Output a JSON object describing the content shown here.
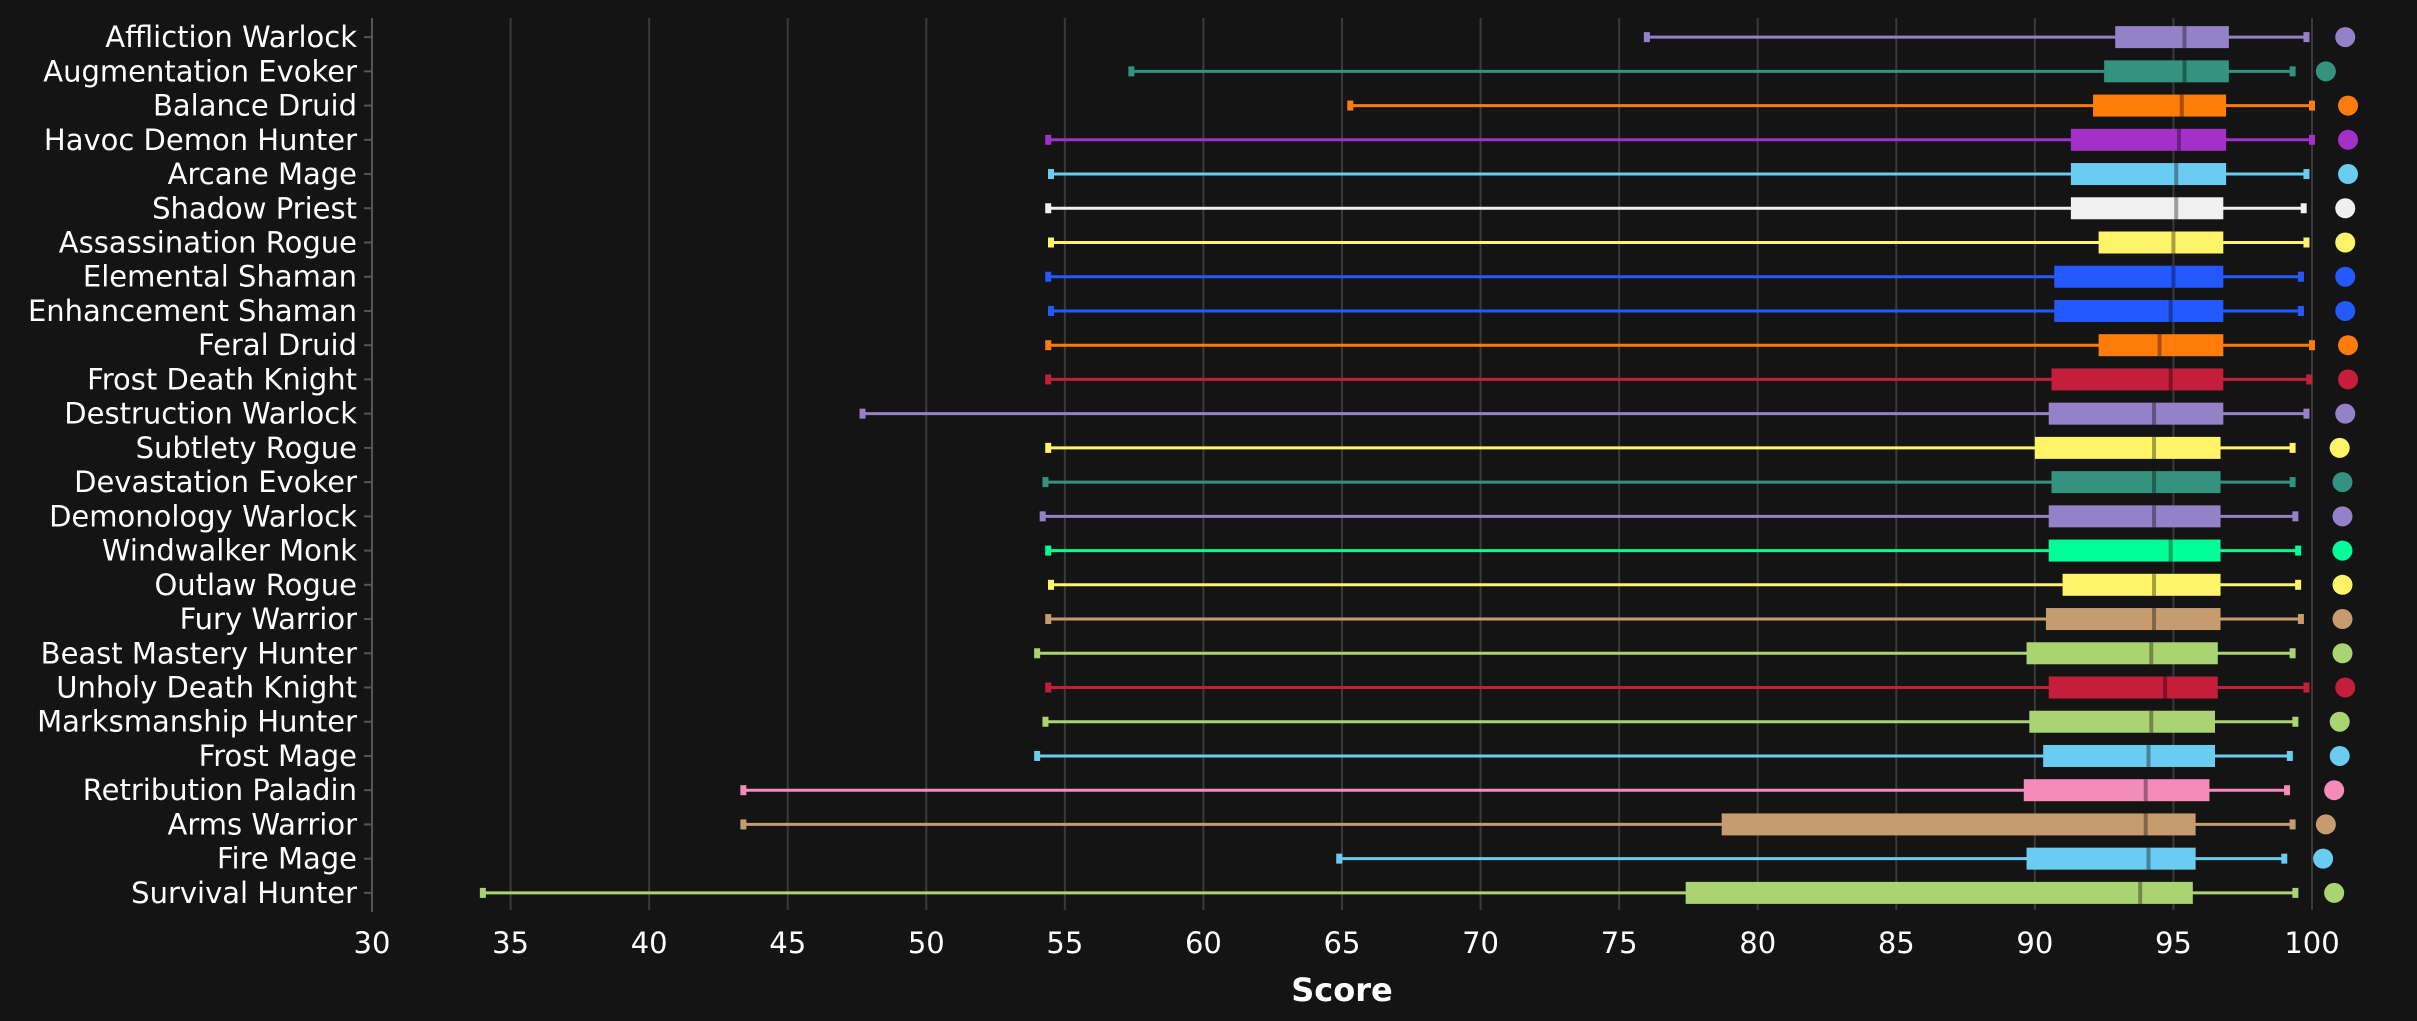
{
  "chart_data": {
    "type": "boxplot",
    "xlabel": "Score",
    "xlim": [
      30,
      100
    ],
    "xticks": [
      30,
      35,
      40,
      45,
      50,
      55,
      60,
      65,
      70,
      75,
      80,
      85,
      90,
      95,
      100
    ],
    "grid": true,
    "legend": "none",
    "series": [
      {
        "name": "Affliction Warlock",
        "color": "#9482C9",
        "min": 76.0,
        "q1": 92.9,
        "median": 95.4,
        "q3": 97.0,
        "max": 99.8,
        "dot": 101.2
      },
      {
        "name": "Augmentation Evoker",
        "color": "#33937F",
        "min": 57.4,
        "q1": 92.5,
        "median": 95.4,
        "q3": 97.0,
        "max": 99.3,
        "dot": 100.5
      },
      {
        "name": "Balance Druid",
        "color": "#FF7C0A",
        "min": 65.3,
        "q1": 92.1,
        "median": 95.3,
        "q3": 96.9,
        "max": 100.0,
        "dot": 101.3
      },
      {
        "name": "Havoc Demon Hunter",
        "color": "#A330C9",
        "min": 54.4,
        "q1": 91.3,
        "median": 95.2,
        "q3": 96.9,
        "max": 100.0,
        "dot": 101.3
      },
      {
        "name": "Arcane Mage",
        "color": "#69CCF0",
        "min": 54.5,
        "q1": 91.3,
        "median": 95.1,
        "q3": 96.9,
        "max": 99.8,
        "dot": 101.3
      },
      {
        "name": "Shadow Priest",
        "color": "#F0F0F0",
        "min": 54.4,
        "q1": 91.3,
        "median": 95.1,
        "q3": 96.8,
        "max": 99.7,
        "dot": 101.2
      },
      {
        "name": "Assassination Rogue",
        "color": "#FFF468",
        "min": 54.5,
        "q1": 92.3,
        "median": 95.0,
        "q3": 96.8,
        "max": 99.8,
        "dot": 101.2
      },
      {
        "name": "Elemental Shaman",
        "color": "#2459FF",
        "min": 54.4,
        "q1": 90.7,
        "median": 95.0,
        "q3": 96.8,
        "max": 99.6,
        "dot": 101.2
      },
      {
        "name": "Enhancement Shaman",
        "color": "#2459FF",
        "min": 54.5,
        "q1": 90.7,
        "median": 94.9,
        "q3": 96.8,
        "max": 99.6,
        "dot": 101.2
      },
      {
        "name": "Feral Druid",
        "color": "#FF7C0A",
        "min": 54.4,
        "q1": 92.3,
        "median": 94.5,
        "q3": 96.8,
        "max": 100.0,
        "dot": 101.3
      },
      {
        "name": "Frost Death Knight",
        "color": "#C41E3A",
        "min": 54.4,
        "q1": 90.6,
        "median": 94.9,
        "q3": 96.8,
        "max": 99.9,
        "dot": 101.3
      },
      {
        "name": "Destruction Warlock",
        "color": "#9482C9",
        "min": 47.7,
        "q1": 90.5,
        "median": 94.3,
        "q3": 96.8,
        "max": 99.8,
        "dot": 101.2
      },
      {
        "name": "Subtlety Rogue",
        "color": "#FFF468",
        "min": 54.4,
        "q1": 90.0,
        "median": 94.3,
        "q3": 96.7,
        "max": 99.3,
        "dot": 101.0
      },
      {
        "name": "Devastation Evoker",
        "color": "#33937F",
        "min": 54.3,
        "q1": 90.6,
        "median": 94.3,
        "q3": 96.7,
        "max": 99.3,
        "dot": 101.1
      },
      {
        "name": "Demonology Warlock",
        "color": "#9482C9",
        "min": 54.2,
        "q1": 90.5,
        "median": 94.3,
        "q3": 96.7,
        "max": 99.4,
        "dot": 101.1
      },
      {
        "name": "Windwalker Monk",
        "color": "#00FF98",
        "min": 54.4,
        "q1": 90.5,
        "median": 94.9,
        "q3": 96.7,
        "max": 99.5,
        "dot": 101.1
      },
      {
        "name": "Outlaw Rogue",
        "color": "#FFF468",
        "min": 54.5,
        "q1": 91.0,
        "median": 94.3,
        "q3": 96.7,
        "max": 99.5,
        "dot": 101.1
      },
      {
        "name": "Fury Warrior",
        "color": "#C69B6D",
        "min": 54.4,
        "q1": 90.4,
        "median": 94.3,
        "q3": 96.7,
        "max": 99.6,
        "dot": 101.1
      },
      {
        "name": "Beast Mastery Hunter",
        "color": "#AAD372",
        "min": 54.0,
        "q1": 89.7,
        "median": 94.2,
        "q3": 96.6,
        "max": 99.3,
        "dot": 101.1
      },
      {
        "name": "Unholy Death Knight",
        "color": "#C41E3A",
        "min": 54.4,
        "q1": 90.5,
        "median": 94.7,
        "q3": 96.6,
        "max": 99.8,
        "dot": 101.2
      },
      {
        "name": "Marksmanship Hunter",
        "color": "#AAD372",
        "min": 54.3,
        "q1": 89.8,
        "median": 94.2,
        "q3": 96.5,
        "max": 99.4,
        "dot": 101.0
      },
      {
        "name": "Frost Mage",
        "color": "#69CCF0",
        "min": 54.0,
        "q1": 90.3,
        "median": 94.1,
        "q3": 96.5,
        "max": 99.2,
        "dot": 101.0
      },
      {
        "name": "Retribution Paladin",
        "color": "#F48CBA",
        "min": 43.4,
        "q1": 89.6,
        "median": 94.0,
        "q3": 96.3,
        "max": 99.1,
        "dot": 100.8
      },
      {
        "name": "Arms Warrior",
        "color": "#C69B6D",
        "min": 43.4,
        "q1": 78.7,
        "median": 94.0,
        "q3": 95.8,
        "max": 99.3,
        "dot": 100.5
      },
      {
        "name": "Fire Mage",
        "color": "#69CCF0",
        "min": 64.9,
        "q1": 89.7,
        "median": 94.1,
        "q3": 95.8,
        "max": 99.0,
        "dot": 100.4
      },
      {
        "name": "Survival Hunter",
        "color": "#AAD372",
        "min": 34.0,
        "q1": 77.4,
        "median": 93.8,
        "q3": 95.7,
        "max": 99.4,
        "dot": 100.8
      }
    ]
  }
}
